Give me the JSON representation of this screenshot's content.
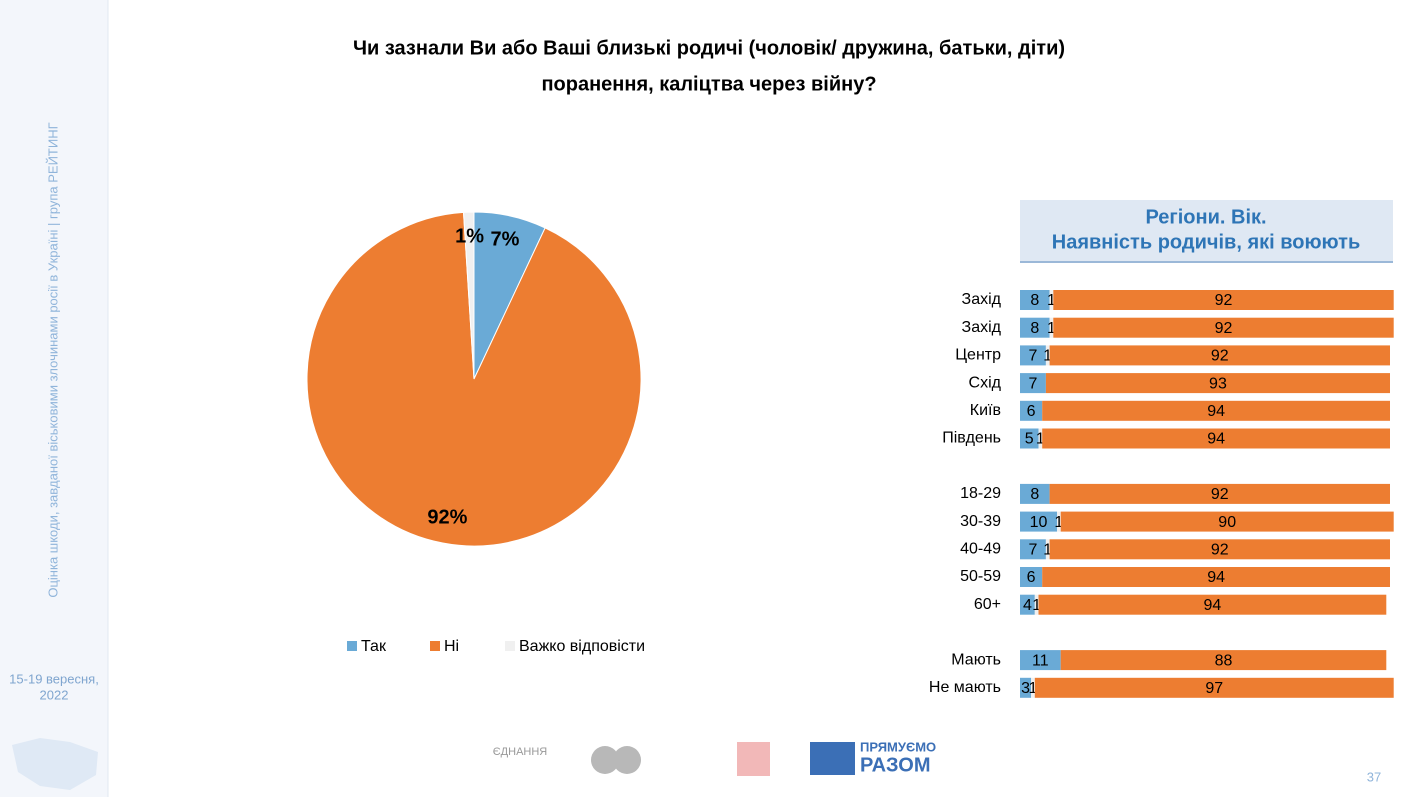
{
  "sidebar": {
    "caption": "Оцінка шкоди, завданої віськовими злочинами росії в Україні | група РЕЙТИНГ",
    "date_lines": [
      "15-19 вересня,",
      "2022"
    ]
  },
  "header": {
    "title_lines": [
      "Чи зазнали Ви або Ваші близькі родичі (чоловік/ дружина, батьки, діти)",
      "поранення, каліцтва через війну?"
    ]
  },
  "chart_data": [
    {
      "type": "pie",
      "series": [
        {
          "name": "Так",
          "color": "#6aaad6",
          "values": [
            7
          ],
          "value_labels": [
            "7%"
          ]
        },
        {
          "name": "Ні",
          "color": "#ed7d31",
          "values": [
            92
          ],
          "value_labels": [
            "92%"
          ]
        },
        {
          "name": "Важко відповісти",
          "color": "#f0f0f0",
          "values": [
            1
          ],
          "value_labels": [
            "1%"
          ]
        }
      ]
    },
    {
      "type": "bar",
      "orientation": "horizontal",
      "stacked": true,
      "title_lines": [
        "Регіони. Вік.",
        "Наявність родичів, які воюють"
      ],
      "categories": [
        "Захід",
        "Захід",
        "Центр",
        "Схід",
        "Київ",
        "Південь",
        null,
        "18-29",
        "30-39",
        "40-49",
        "50-59",
        "60+",
        null,
        "Мають",
        "Не мають"
      ],
      "xlim": [
        0,
        100
      ],
      "series": [
        {
          "color": "#6aaad6",
          "values": [
            8,
            8,
            7,
            7,
            6,
            5,
            null,
            8,
            10,
            7,
            6,
            4,
            null,
            11,
            3
          ]
        },
        {
          "color": "#f0f0f0",
          "values": [
            1,
            1,
            1,
            null,
            null,
            1,
            null,
            null,
            1,
            1,
            null,
            1,
            null,
            null,
            1
          ]
        },
        {
          "color": "#ed7d31",
          "values": [
            92,
            92,
            92,
            93,
            94,
            94,
            null,
            92,
            90,
            92,
            94,
            94,
            null,
            88,
            97
          ]
        }
      ]
    }
  ],
  "footer": {
    "logo_1": "ЄДНАННЯ",
    "logo_4_lines": [
      "ПРЯМУЄМО",
      "РАЗОМ"
    ],
    "page": "37"
  }
}
